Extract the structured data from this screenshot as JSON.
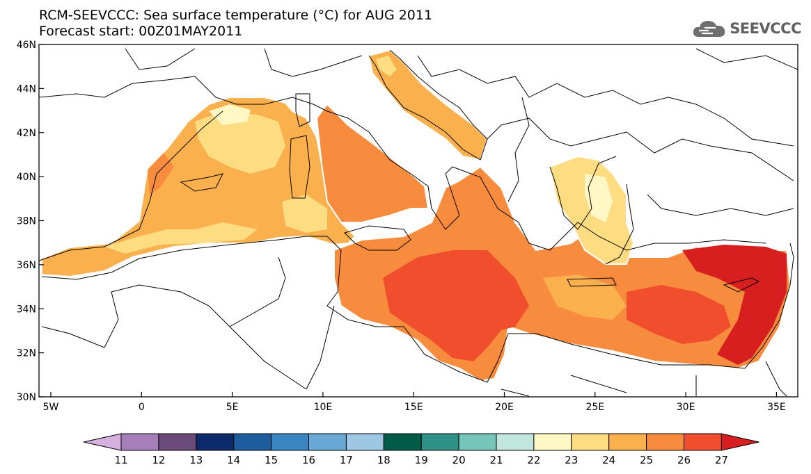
{
  "header": {
    "title_line1": "RCM-SEEVCCC: Sea surface temperature (°C) for AUG 2011",
    "title_line2": "Forecast start: 00Z01MAY2011",
    "logo_text": "SEEVCCC"
  },
  "map": {
    "region": "Mediterranean Sea",
    "variable": "Sea surface temperature",
    "unit": "°C",
    "lat_ticks": [
      "30N",
      "32N",
      "34N",
      "36N",
      "38N",
      "40N",
      "42N",
      "44N",
      "46N"
    ],
    "lon_ticks": [
      "5W",
      "0",
      "5E",
      "10E",
      "15E",
      "20E",
      "25E",
      "30E",
      "35E"
    ]
  },
  "colorbar": {
    "labels": [
      "11",
      "12",
      "13",
      "14",
      "15",
      "16",
      "17",
      "18",
      "19",
      "20",
      "21",
      "22",
      "23",
      "24",
      "25",
      "26",
      "27"
    ],
    "colors": [
      "#d6b1e0",
      "#a57fba",
      "#6a4b7a",
      "#0d2a6b",
      "#1d5c9e",
      "#3a86c2",
      "#68a9d6",
      "#9cc8e3",
      "#005b47",
      "#2f9085",
      "#76c5b9",
      "#c1e6dd",
      "#fff8c4",
      "#fddc82",
      "#fbb04e",
      "#f88c3e",
      "#f04e2c",
      "#d81f1f"
    ]
  }
}
